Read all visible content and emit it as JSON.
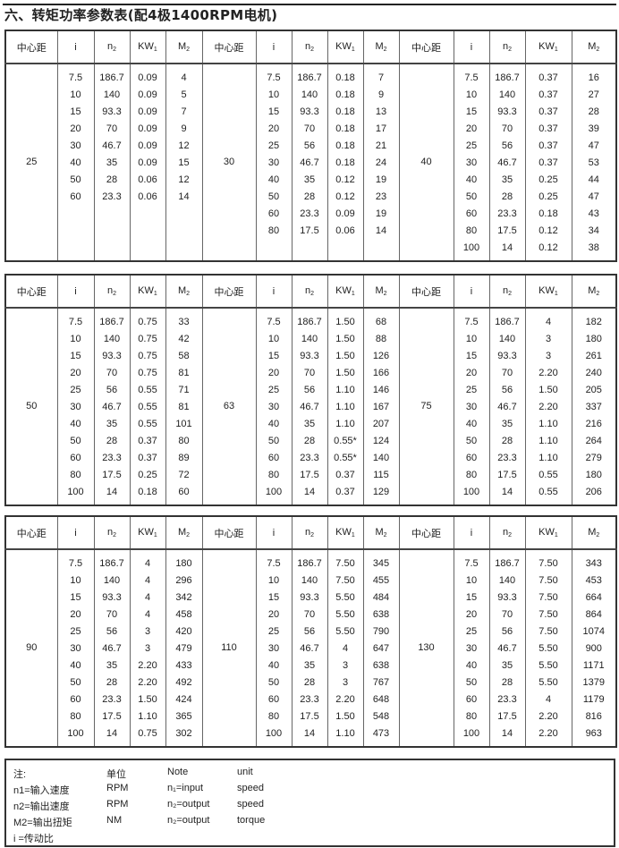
{
  "title": "六、转矩功率参数表(配4极1400RPM电机)",
  "header": {
    "cd": "中心距",
    "i": "i",
    "n2": "n",
    "n2_sub": "2",
    "kw": "KW",
    "kw_sub": "1",
    "m2": "M",
    "m2_sub": "2"
  },
  "tables": [
    {
      "groups": [
        {
          "center_distance": "25",
          "rows": [
            [
              "7.5",
              "186.7",
              "0.09",
              "4"
            ],
            [
              "10",
              "140",
              "0.09",
              "5"
            ],
            [
              "15",
              "93.3",
              "0.09",
              "7"
            ],
            [
              "20",
              "70",
              "0.09",
              "9"
            ],
            [
              "30",
              "46.7",
              "0.09",
              "12"
            ],
            [
              "40",
              "35",
              "0.09",
              "15"
            ],
            [
              "50",
              "28",
              "0.06",
              "12"
            ],
            [
              "60",
              "23.3",
              "0.06",
              "14"
            ]
          ]
        },
        {
          "center_distance": "30",
          "rows": [
            [
              "7.5",
              "186.7",
              "0.18",
              "7"
            ],
            [
              "10",
              "140",
              "0.18",
              "9"
            ],
            [
              "15",
              "93.3",
              "0.18",
              "13"
            ],
            [
              "20",
              "70",
              "0.18",
              "17"
            ],
            [
              "25",
              "56",
              "0.18",
              "21"
            ],
            [
              "30",
              "46.7",
              "0.18",
              "24"
            ],
            [
              "40",
              "35",
              "0.12",
              "19"
            ],
            [
              "50",
              "28",
              "0.12",
              "23"
            ],
            [
              "60",
              "23.3",
              "0.09",
              "19"
            ],
            [
              "80",
              "17.5",
              "0.06",
              "14"
            ]
          ]
        },
        {
          "center_distance": "40",
          "rows": [
            [
              "7.5",
              "186.7",
              "0.37",
              "16"
            ],
            [
              "10",
              "140",
              "0.37",
              "27"
            ],
            [
              "15",
              "93.3",
              "0.37",
              "28"
            ],
            [
              "20",
              "70",
              "0.37",
              "39"
            ],
            [
              "25",
              "56",
              "0.37",
              "47"
            ],
            [
              "30",
              "46.7",
              "0.37",
              "53"
            ],
            [
              "40",
              "35",
              "0.25",
              "44"
            ],
            [
              "50",
              "28",
              "0.25",
              "47"
            ],
            [
              "60",
              "23.3",
              "0.18",
              "43"
            ],
            [
              "80",
              "17.5",
              "0.12",
              "34"
            ],
            [
              "100",
              "14",
              "0.12",
              "38"
            ]
          ]
        }
      ]
    },
    {
      "groups": [
        {
          "center_distance": "50",
          "rows": [
            [
              "7.5",
              "186.7",
              "0.75",
              "33"
            ],
            [
              "10",
              "140",
              "0.75",
              "42"
            ],
            [
              "15",
              "93.3",
              "0.75",
              "58"
            ],
            [
              "20",
              "70",
              "0.75",
              "81"
            ],
            [
              "25",
              "56",
              "0.55",
              "71"
            ],
            [
              "30",
              "46.7",
              "0.55",
              "81"
            ],
            [
              "40",
              "35",
              "0.55",
              "101"
            ],
            [
              "50",
              "28",
              "0.37",
              "80"
            ],
            [
              "60",
              "23.3",
              "0.37",
              "89"
            ],
            [
              "80",
              "17.5",
              "0.25",
              "72"
            ],
            [
              "100",
              "14",
              "0.18",
              "60"
            ]
          ]
        },
        {
          "center_distance": "63",
          "rows": [
            [
              "7.5",
              "186.7",
              "1.50",
              "68"
            ],
            [
              "10",
              "140",
              "1.50",
              "88"
            ],
            [
              "15",
              "93.3",
              "1.50",
              "126"
            ],
            [
              "20",
              "70",
              "1.50",
              "166"
            ],
            [
              "25",
              "56",
              "1.10",
              "146"
            ],
            [
              "30",
              "46.7",
              "1.10",
              "167"
            ],
            [
              "40",
              "35",
              "1.10",
              "207"
            ],
            [
              "50",
              "28",
              "0.55*",
              "124"
            ],
            [
              "60",
              "23.3",
              "0.55*",
              "140"
            ],
            [
              "80",
              "17.5",
              "0.37",
              "115"
            ],
            [
              "100",
              "14",
              "0.37",
              "129"
            ]
          ]
        },
        {
          "center_distance": "75",
          "rows": [
            [
              "7.5",
              "186.7",
              "4",
              "182"
            ],
            [
              "10",
              "140",
              "3",
              "180"
            ],
            [
              "15",
              "93.3",
              "3",
              "261"
            ],
            [
              "20",
              "70",
              "2.20",
              "240"
            ],
            [
              "25",
              "56",
              "1.50",
              "205"
            ],
            [
              "30",
              "46.7",
              "2.20",
              "337"
            ],
            [
              "40",
              "35",
              "1.10",
              "216"
            ],
            [
              "50",
              "28",
              "1.10",
              "264"
            ],
            [
              "60",
              "23.3",
              "1.10",
              "279"
            ],
            [
              "80",
              "17.5",
              "0.55",
              "180"
            ],
            [
              "100",
              "14",
              "0.55",
              "206"
            ]
          ]
        }
      ]
    },
    {
      "groups": [
        {
          "center_distance": "90",
          "rows": [
            [
              "7.5",
              "186.7",
              "4",
              "180"
            ],
            [
              "10",
              "140",
              "4",
              "296"
            ],
            [
              "15",
              "93.3",
              "4",
              "342"
            ],
            [
              "20",
              "70",
              "4",
              "458"
            ],
            [
              "25",
              "56",
              "3",
              "420"
            ],
            [
              "30",
              "46.7",
              "3",
              "479"
            ],
            [
              "40",
              "35",
              "2.20",
              "433"
            ],
            [
              "50",
              "28",
              "2.20",
              "492"
            ],
            [
              "60",
              "23.3",
              "1.50",
              "424"
            ],
            [
              "80",
              "17.5",
              "1.10",
              "365"
            ],
            [
              "100",
              "14",
              "0.75",
              "302"
            ]
          ]
        },
        {
          "center_distance": "110",
          "rows": [
            [
              "7.5",
              "186.7",
              "7.50",
              "345"
            ],
            [
              "10",
              "140",
              "7.50",
              "455"
            ],
            [
              "15",
              "93.3",
              "5.50",
              "484"
            ],
            [
              "20",
              "70",
              "5.50",
              "638"
            ],
            [
              "25",
              "56",
              "5.50",
              "790"
            ],
            [
              "30",
              "46.7",
              "4",
              "647"
            ],
            [
              "40",
              "35",
              "3",
              "638"
            ],
            [
              "50",
              "28",
              "3",
              "767"
            ],
            [
              "60",
              "23.3",
              "2.20",
              "648"
            ],
            [
              "80",
              "17.5",
              "1.50",
              "548"
            ],
            [
              "100",
              "14",
              "1.10",
              "473"
            ]
          ]
        },
        {
          "center_distance": "130",
          "rows": [
            [
              "7.5",
              "186.7",
              "7.50",
              "343"
            ],
            [
              "10",
              "140",
              "7.50",
              "453"
            ],
            [
              "15",
              "93.3",
              "7.50",
              "664"
            ],
            [
              "20",
              "70",
              "7.50",
              "864"
            ],
            [
              "25",
              "56",
              "7.50",
              "1074"
            ],
            [
              "30",
              "46.7",
              "5.50",
              "900"
            ],
            [
              "40",
              "35",
              "5.50",
              "1171"
            ],
            [
              "50",
              "28",
              "5.50",
              "1379"
            ],
            [
              "60",
              "23.3",
              "4",
              "1179"
            ],
            [
              "80",
              "17.5",
              "2.20",
              "816"
            ],
            [
              "100",
              "14",
              "2.20",
              "963"
            ]
          ]
        }
      ]
    }
  ],
  "notes": {
    "rows": [
      [
        "注:",
        "单位",
        "Note",
        "unit"
      ],
      [
        "n1=输入速度",
        "RPM",
        "n₁=input",
        "speed"
      ],
      [
        "n2=输出速度",
        "RPM",
        "n₂=output",
        "speed"
      ],
      [
        "M2=输出扭矩",
        "NM",
        "n₂=output",
        "torque"
      ],
      [
        " i =传动比",
        "",
        "",
        ""
      ]
    ]
  }
}
